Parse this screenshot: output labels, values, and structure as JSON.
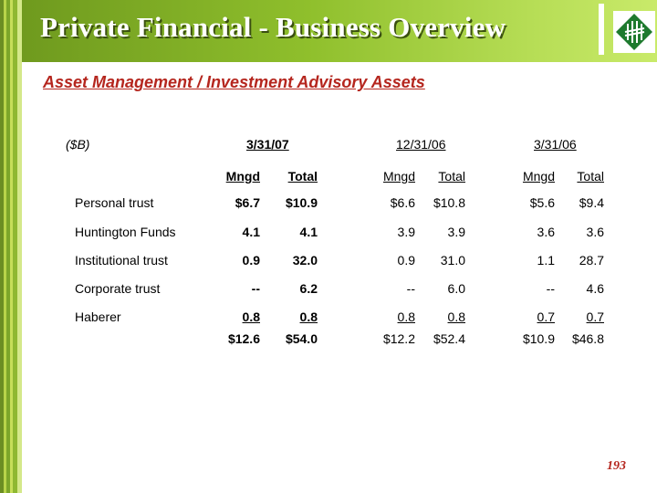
{
  "title": "Private Financial - Business Overview",
  "subtitle": "Asset Management / Investment Advisory Assets",
  "units": "($B)",
  "periods": [
    "3/31/07",
    "12/31/06",
    "3/31/06"
  ],
  "col_headers": {
    "mngd": "Mngd",
    "total": "Total"
  },
  "rows": [
    {
      "label": "Personal trust",
      "values": [
        "$6.7",
        "$10.9",
        "$6.6",
        "$10.8",
        "$5.6",
        "$9.4"
      ]
    },
    {
      "label": "Huntington Funds",
      "values": [
        "4.1",
        "4.1",
        "3.9",
        "3.9",
        "3.6",
        "3.6"
      ]
    },
    {
      "label": "Institutional trust",
      "values": [
        "0.9",
        "32.0",
        "0.9",
        "31.0",
        "1.1",
        "28.7"
      ]
    },
    {
      "label": "Corporate trust",
      "values": [
        "--",
        "6.2",
        "--",
        "6.0",
        "--",
        "4.6"
      ]
    },
    {
      "label": "Haberer",
      "values": [
        "0.8",
        "0.8",
        "0.8",
        "0.8",
        "0.7",
        "0.7"
      ]
    }
  ],
  "totals": [
    "$12.6",
    "$54.0",
    "$12.2",
    "$52.4",
    "$10.9",
    "$46.8"
  ],
  "page_number": "193",
  "colors": {
    "accent_red": "#b5261e",
    "green_dark": "#6f9a1e",
    "green_light": "#c9ea6a",
    "logo_green": "#1e7a2e"
  }
}
